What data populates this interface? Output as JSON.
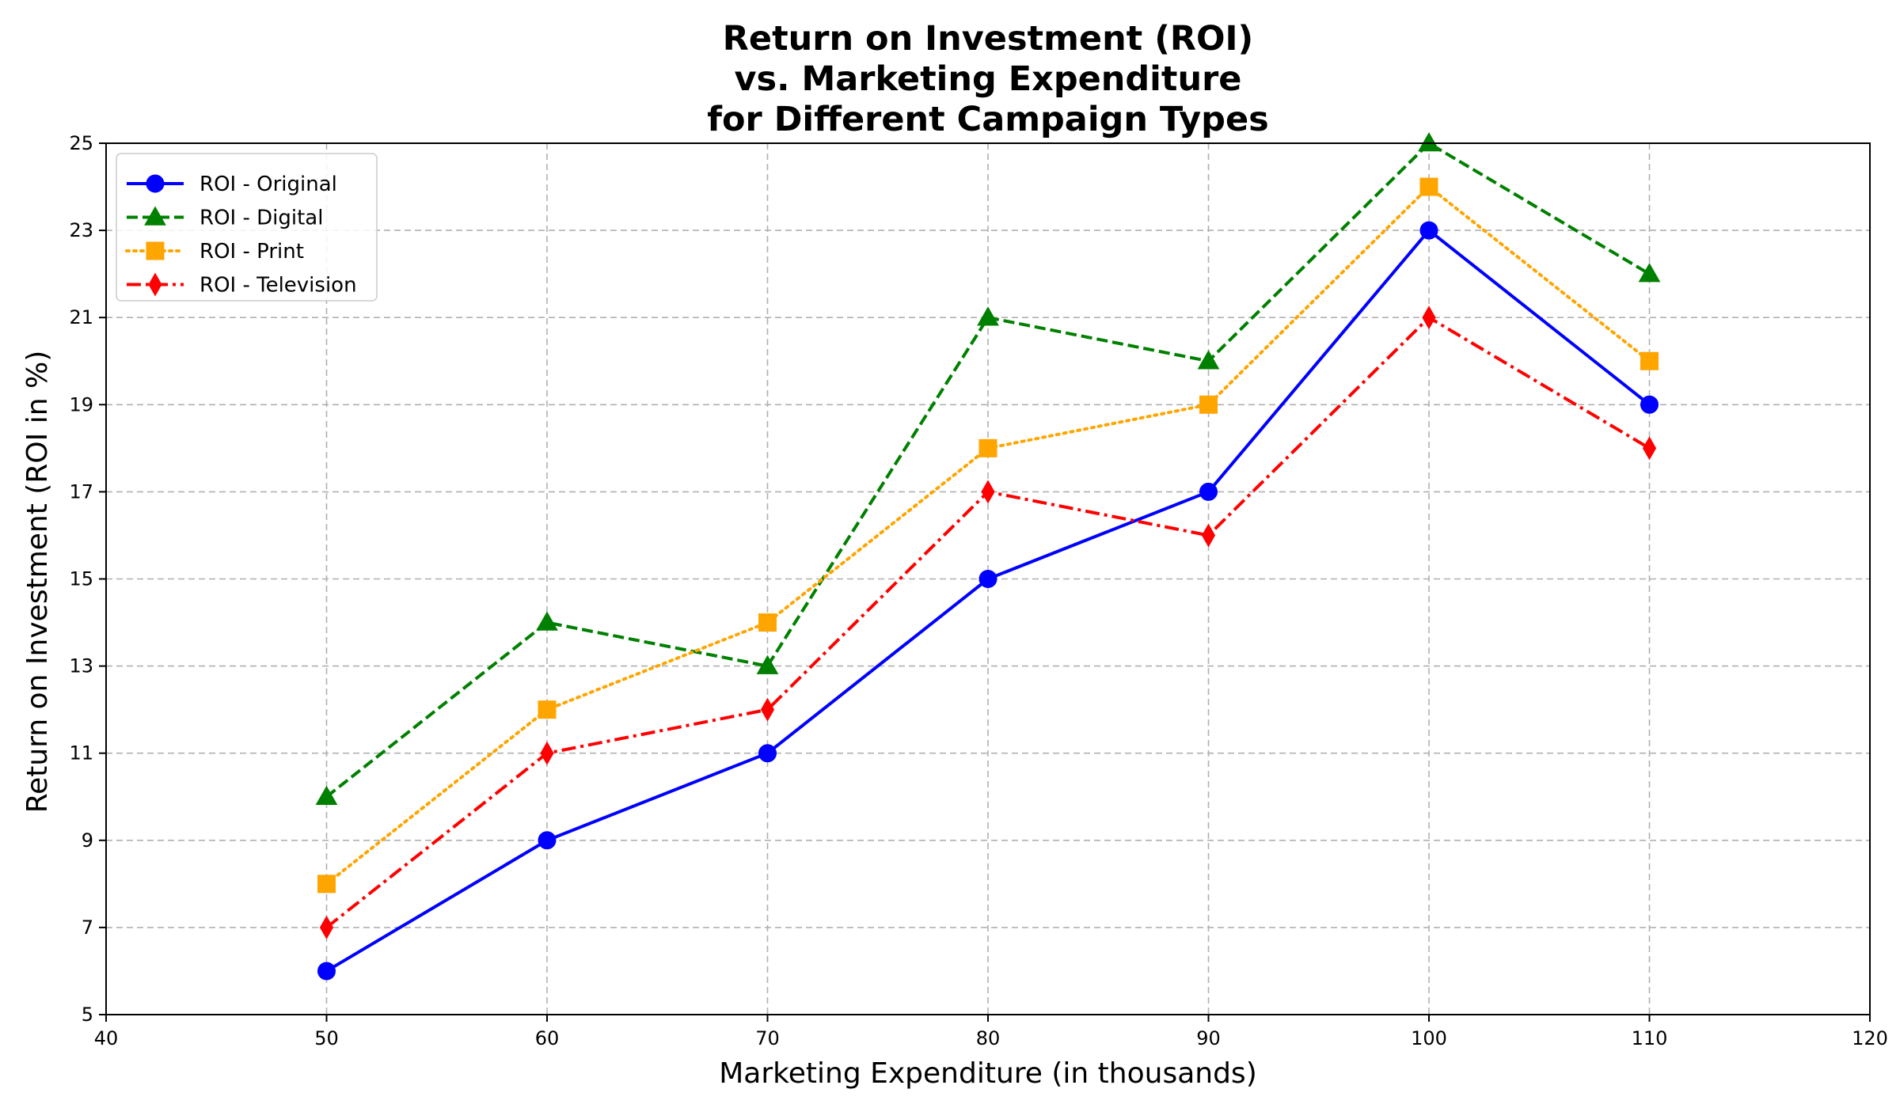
{
  "chart_data": {
    "type": "line",
    "title_lines": [
      "Return on Investment (ROI)",
      "vs. Marketing Expenditure",
      "for Different Campaign Types"
    ],
    "xlabel": "Marketing Expenditure (in thousands)",
    "ylabel": "Return on Investment (ROI in %)",
    "xlim": [
      40,
      120
    ],
    "ylim": [
      5,
      25
    ],
    "xticks": [
      40,
      50,
      60,
      70,
      80,
      90,
      100,
      110,
      120
    ],
    "yticks": [
      5,
      7,
      9,
      11,
      13,
      15,
      17,
      19,
      21,
      23,
      25
    ],
    "grid": true,
    "legend_position": "top-left",
    "x": [
      50,
      60,
      70,
      80,
      90,
      100,
      110
    ],
    "series": [
      {
        "name": "ROI - Original",
        "values": [
          6,
          9,
          11,
          15,
          17,
          23,
          19
        ],
        "color": "#0000ff",
        "line_style": "solid",
        "marker": "circle"
      },
      {
        "name": "ROI - Digital",
        "values": [
          10,
          14,
          13,
          21,
          20,
          25,
          22
        ],
        "color": "#008000",
        "line_style": "dashed",
        "marker": "triangle"
      },
      {
        "name": "ROI - Print",
        "values": [
          8,
          12,
          14,
          18,
          19,
          24,
          20
        ],
        "color": "#ffa500",
        "line_style": "dotted",
        "marker": "square"
      },
      {
        "name": "ROI - Television",
        "values": [
          7,
          11,
          12,
          17,
          16,
          21,
          18
        ],
        "color": "#ff0000",
        "line_style": "dashdot",
        "marker": "diamond"
      }
    ]
  }
}
